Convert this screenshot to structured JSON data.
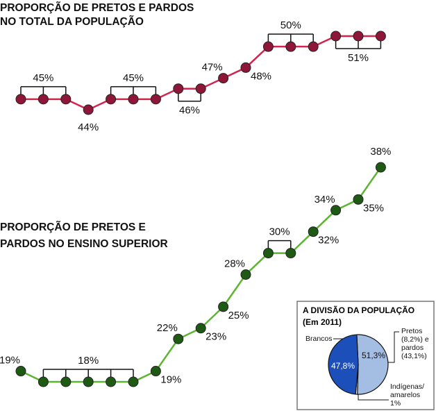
{
  "chart_data": [
    {
      "type": "line",
      "title": [
        "PROPORÇÃO DE PRETOS E PARDOS",
        "NO TOTAL DA POPULAÇÃO"
      ],
      "color": "#d3254c",
      "marker_color": "#8e1638",
      "values": [
        45,
        45,
        45,
        44,
        45,
        45,
        45,
        46,
        46,
        47,
        48,
        50,
        50,
        50,
        51,
        51,
        51
      ],
      "value_labels": [
        null,
        "45%",
        null,
        "44%",
        null,
        "45%",
        null,
        "46%",
        null,
        "47%",
        "48%",
        null,
        "50%",
        null,
        null,
        "51%",
        null
      ]
    },
    {
      "type": "line",
      "title": [
        "PROPORÇÃO DE PRETOS E",
        "PARDOS NO ENSINO SUPERIOR"
      ],
      "color": "#5cb531",
      "marker_color": "#1f5a15",
      "values": [
        19,
        18,
        18,
        18,
        18,
        18,
        19,
        22,
        23,
        25,
        28,
        30,
        30,
        32,
        34,
        35,
        38
      ],
      "value_labels": [
        "19%",
        null,
        null,
        "18%",
        null,
        null,
        "19%",
        "22%",
        "23%",
        "25%",
        "28%",
        "30%",
        null,
        "32%",
        "34%",
        "35%",
        "38%"
      ]
    },
    {
      "type": "pie",
      "title": "A DIVISÃO DA POPULAÇÃO",
      "subtitle": "(Em 2011)",
      "categories": [
        "Pretos (8,2%) e pardos (43,1%)",
        "Indígenas/ amarelos",
        "Brancos"
      ],
      "values": [
        51.3,
        1,
        47.8
      ],
      "value_labels": [
        "51,3%",
        "1%",
        "47,8%"
      ],
      "colors": [
        "#a4bde2",
        "#eef2fa",
        "#1c4fb9"
      ]
    }
  ]
}
